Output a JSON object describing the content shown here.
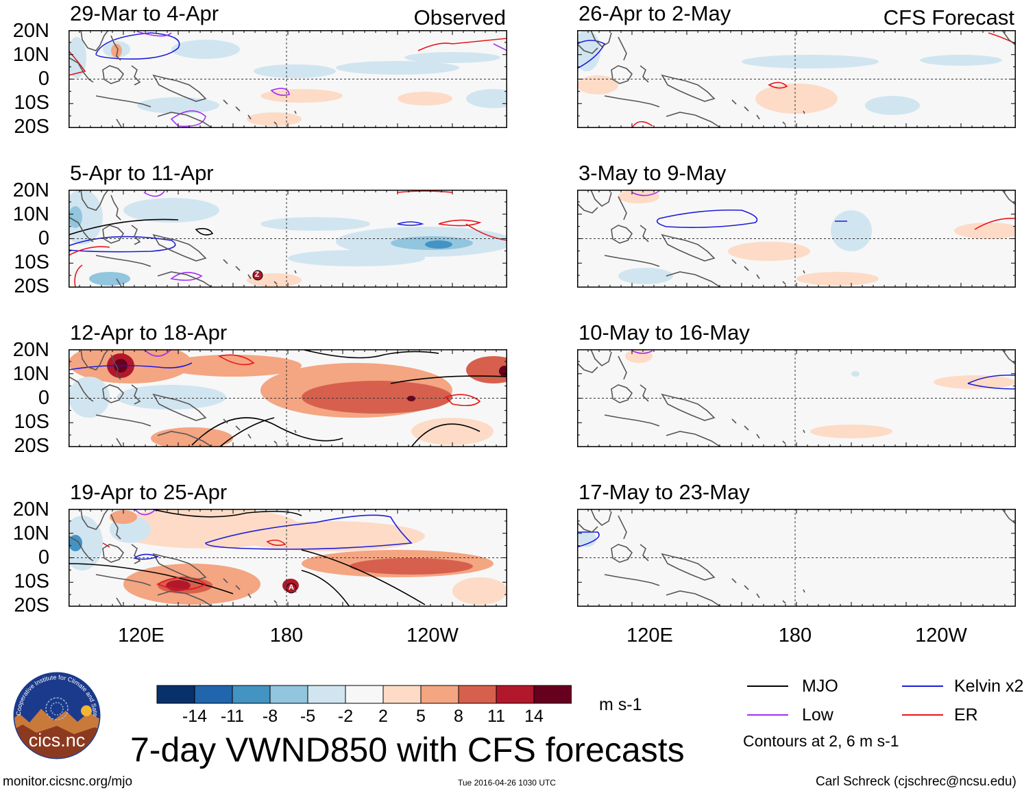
{
  "headers": {
    "left": "Observed",
    "right": "CFS Forecast"
  },
  "panels_left": [
    {
      "title": "29-Mar to 4-Apr"
    },
    {
      "title": "5-Apr to 11-Apr"
    },
    {
      "title": "12-Apr to 18-Apr"
    },
    {
      "title": "19-Apr to 25-Apr"
    }
  ],
  "panels_right": [
    {
      "title": "26-Apr to 2-May"
    },
    {
      "title": "3-May to 9-May"
    },
    {
      "title": "10-May to 16-May"
    },
    {
      "title": "17-May to 23-May"
    }
  ],
  "lat_labels": [
    "20N",
    "10N",
    "0",
    "10S",
    "20S"
  ],
  "lon_labels": [
    "120E",
    "180",
    "120W"
  ],
  "colorbar": {
    "colors": [
      "#08306b",
      "#2166ac",
      "#4393c3",
      "#92c5de",
      "#d1e5f0",
      "#f7f7f7",
      "#fddbc7",
      "#f4a582",
      "#d6604d",
      "#b2182b",
      "#67001f"
    ],
    "labels": [
      "-14",
      "-11",
      "-8",
      "-5",
      "-2",
      "2",
      "5",
      "8",
      "11",
      "14"
    ],
    "units": "m s-1"
  },
  "legend": {
    "items": [
      {
        "label": "MJO",
        "color": "#000000"
      },
      {
        "label": "Kelvin x2",
        "color": "#1a1adb"
      },
      {
        "label": "Low",
        "color": "#a02ff0"
      },
      {
        "label": "ER",
        "color": "#e8141a"
      }
    ],
    "note": "Contours at 2, 6 m s-1"
  },
  "main_title": "7-day VWND850 with CFS forecasts",
  "logo_text": "cics.nc",
  "logo_ring_text": "Cooperative Institute for Climate and Satellites",
  "footer": {
    "left": "monitor.cicsnc.org/mjo",
    "center": "Tue 2016-04-26 1030 UTC",
    "right": "Carl Schreck (cjschrec@ncsu.edu)"
  },
  "storm_markers": [
    {
      "letter": "Z"
    },
    {
      "letter": "A"
    }
  ]
}
